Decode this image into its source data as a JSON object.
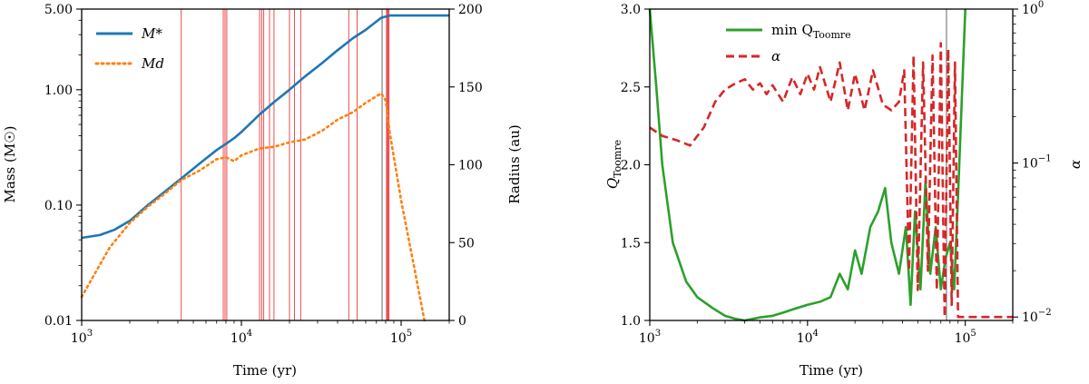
{
  "chart_data": [
    {
      "type": "line",
      "xscale": "log",
      "xlim": [
        1000,
        200000
      ],
      "xticks": [
        1000,
        10000,
        100000
      ],
      "xtick_labels": [
        "10",
        "10",
        "10"
      ],
      "xtick_exponents": [
        "3",
        "4",
        "5"
      ],
      "xlabel": "Time (yr)",
      "yscale": "log",
      "ylim": [
        0.01,
        5
      ],
      "ylabel": "Mass (M☉)",
      "yticks": [
        0.01,
        0.1,
        1,
        5
      ],
      "ytick_labels": [
        "0.01",
        "0.10",
        "1.00",
        "5.00"
      ],
      "y2lim": [
        0,
        200
      ],
      "y2label": "Radius (au)",
      "y2ticks": [
        0,
        50,
        100,
        150,
        200
      ],
      "y2tick_labels": [
        "0",
        "50",
        "100",
        "150",
        "200"
      ],
      "legend_position": "top-left",
      "series": [
        {
          "name": "M*",
          "color": "#1f77b4",
          "style": "solid",
          "x": [
            1000,
            1300,
            1600,
            2000,
            2600,
            3300,
            4200,
            5500,
            7000,
            8000,
            9000,
            10000,
            13000,
            16000,
            20000,
            25000,
            32000,
            40000,
            50000,
            60000,
            75000,
            80000,
            85000,
            100000,
            150000,
            200000
          ],
          "y": [
            0.052,
            0.055,
            0.061,
            0.073,
            0.1,
            0.13,
            0.17,
            0.23,
            0.3,
            0.34,
            0.38,
            0.43,
            0.61,
            0.78,
            1.0,
            1.3,
            1.7,
            2.2,
            2.8,
            3.3,
            4.2,
            4.3,
            4.4,
            4.4,
            4.4,
            4.4
          ]
        },
        {
          "name": "Md",
          "color": "#ff7f0e",
          "style": "dotted",
          "x": [
            1000,
            1200,
            1500,
            2000,
            2600,
            3300,
            4200,
            5500,
            7000,
            8000,
            9000,
            10000,
            13000,
            16000,
            20000,
            25000,
            32000,
            40000,
            50000,
            60000,
            75000,
            80000,
            85000,
            100000,
            120000,
            140000
          ],
          "y": [
            0.016,
            0.025,
            0.043,
            0.07,
            0.097,
            0.125,
            0.165,
            0.2,
            0.25,
            0.26,
            0.24,
            0.27,
            0.31,
            0.32,
            0.35,
            0.37,
            0.44,
            0.55,
            0.64,
            0.77,
            0.93,
            0.81,
            0.42,
            0.11,
            0.03,
            0.01
          ]
        }
      ],
      "vlines_red": [
        4200,
        7700,
        7900,
        8100,
        13000,
        13400,
        13800,
        15000,
        16000,
        20000,
        21500,
        23500,
        47000,
        53000,
        81000,
        82000,
        83000,
        84000
      ],
      "vline_black": 76000
    },
    {
      "type": "line",
      "xscale": "log",
      "xlim": [
        1000,
        200000
      ],
      "xticks": [
        1000,
        10000,
        100000
      ],
      "xtick_labels": [
        "10",
        "10",
        "10"
      ],
      "xtick_exponents": [
        "3",
        "4",
        "5"
      ],
      "xlabel": "Time (yr)",
      "ylim": [
        1.0,
        3.0
      ],
      "ylabel": "Q",
      "ylabel_subscript": "Toomre",
      "yticks": [
        1.0,
        1.5,
        2.0,
        2.5,
        3.0
      ],
      "ytick_labels": [
        "1.0",
        "1.5",
        "2.0",
        "2.5",
        "3.0"
      ],
      "y2scale": "log",
      "y2lim": [
        0.0095,
        1
      ],
      "y2label": "α",
      "y2ticks": [
        0.01,
        0.1,
        1
      ],
      "y2tick_labels": [
        "10",
        "10",
        "10"
      ],
      "y2tick_exponents": [
        "−2",
        "−1",
        "0"
      ],
      "legend_position": "top-center",
      "series": [
        {
          "name": "min Q",
          "name_subscript": "Toomre",
          "color": "#2ca02c",
          "style": "solid",
          "x": [
            1000,
            1100,
            1200,
            1400,
            1700,
            2000,
            2500,
            3000,
            3500,
            4000,
            5000,
            6000,
            7000,
            8000,
            10000,
            12000,
            14000,
            16000,
            18000,
            20000,
            22000,
            25000,
            28000,
            31000,
            34000,
            38000,
            42000,
            45000,
            48000,
            52000,
            56000,
            60000,
            65000,
            70000,
            75000,
            80000,
            85000,
            90000,
            100000
          ],
          "y": [
            3.0,
            2.5,
            2.0,
            1.5,
            1.25,
            1.15,
            1.08,
            1.03,
            1.01,
            1.0,
            1.02,
            1.03,
            1.05,
            1.07,
            1.1,
            1.12,
            1.15,
            1.3,
            1.2,
            1.45,
            1.3,
            1.6,
            1.7,
            1.85,
            1.5,
            1.3,
            1.6,
            1.1,
            1.7,
            1.2,
            1.9,
            1.3,
            1.6,
            1.2,
            1.4,
            1.5,
            1.2,
            1.8,
            3.0
          ]
        },
        {
          "name": "α",
          "color": "#d62728",
          "style": "dashed",
          "x": [
            1000,
            1200,
            1500,
            1800,
            2200,
            2600,
            3000,
            3500,
            4000,
            4500,
            5000,
            5500,
            6000,
            7000,
            8000,
            9000,
            10000,
            11000,
            12000,
            14000,
            16000,
            18000,
            20000,
            23000,
            26000,
            30000,
            34000,
            38000,
            41000,
            44000,
            47000,
            50000,
            54000,
            58000,
            62000,
            66000,
            70000,
            74000,
            78000,
            82000,
            86000,
            90000,
            95000,
            100000,
            150000,
            200000
          ],
          "y": [
            0.17,
            0.15,
            0.14,
            0.13,
            0.17,
            0.25,
            0.3,
            0.33,
            0.35,
            0.3,
            0.33,
            0.28,
            0.32,
            0.25,
            0.36,
            0.28,
            0.38,
            0.3,
            0.42,
            0.25,
            0.45,
            0.22,
            0.38,
            0.22,
            0.4,
            0.24,
            0.22,
            0.25,
            0.4,
            0.02,
            0.5,
            0.015,
            0.45,
            0.02,
            0.5,
            0.015,
            0.6,
            0.01,
            0.55,
            0.012,
            0.45,
            0.01,
            0.01,
            0.01,
            0.01,
            0.01
          ]
        }
      ],
      "vline_black": 76000
    }
  ]
}
